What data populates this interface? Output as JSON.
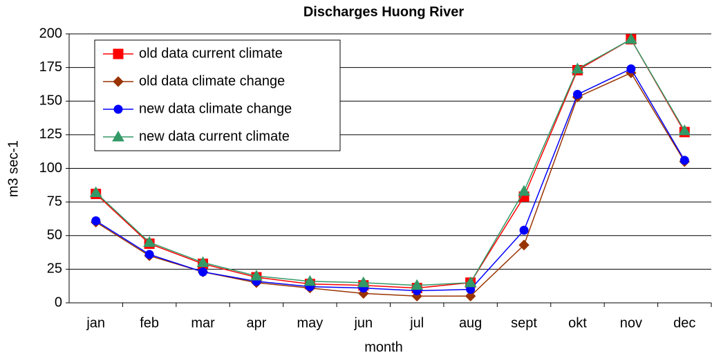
{
  "chart_data": {
    "type": "line",
    "title": "Discharges Huong River",
    "x_label": "month",
    "y_label": "m3 sec-1",
    "categories": [
      "jan",
      "feb",
      "mar",
      "apr",
      "may",
      "jun",
      "jul",
      "aug",
      "sept",
      "okt",
      "nov",
      "dec"
    ],
    "series": [
      {
        "name": "old data current climate",
        "color": "#ff0000",
        "marker": "square",
        "values": [
          81,
          44,
          29,
          19,
          14,
          13,
          11,
          15,
          79,
          173,
          196,
          127
        ]
      },
      {
        "name": "old data climate change",
        "color": "#993300",
        "marker": "diamond",
        "values": [
          60,
          35,
          23,
          15,
          11,
          7,
          5,
          5,
          43,
          153,
          171,
          105
        ]
      },
      {
        "name": "new data climate change",
        "color": "#0000ff",
        "marker": "circle",
        "values": [
          61,
          36,
          23,
          16,
          12,
          11,
          9,
          10,
          54,
          155,
          174,
          106
        ]
      },
      {
        "name": "new data current climate",
        "color": "#339966",
        "marker": "triangle",
        "values": [
          82,
          45,
          30,
          20,
          16,
          15,
          13,
          15,
          83,
          174,
          196,
          128
        ]
      }
    ],
    "ylim": [
      0,
      200
    ],
    "yticks": [
      0,
      25,
      50,
      75,
      100,
      125,
      150,
      175,
      200
    ],
    "grid": true,
    "legend": "top-left"
  }
}
